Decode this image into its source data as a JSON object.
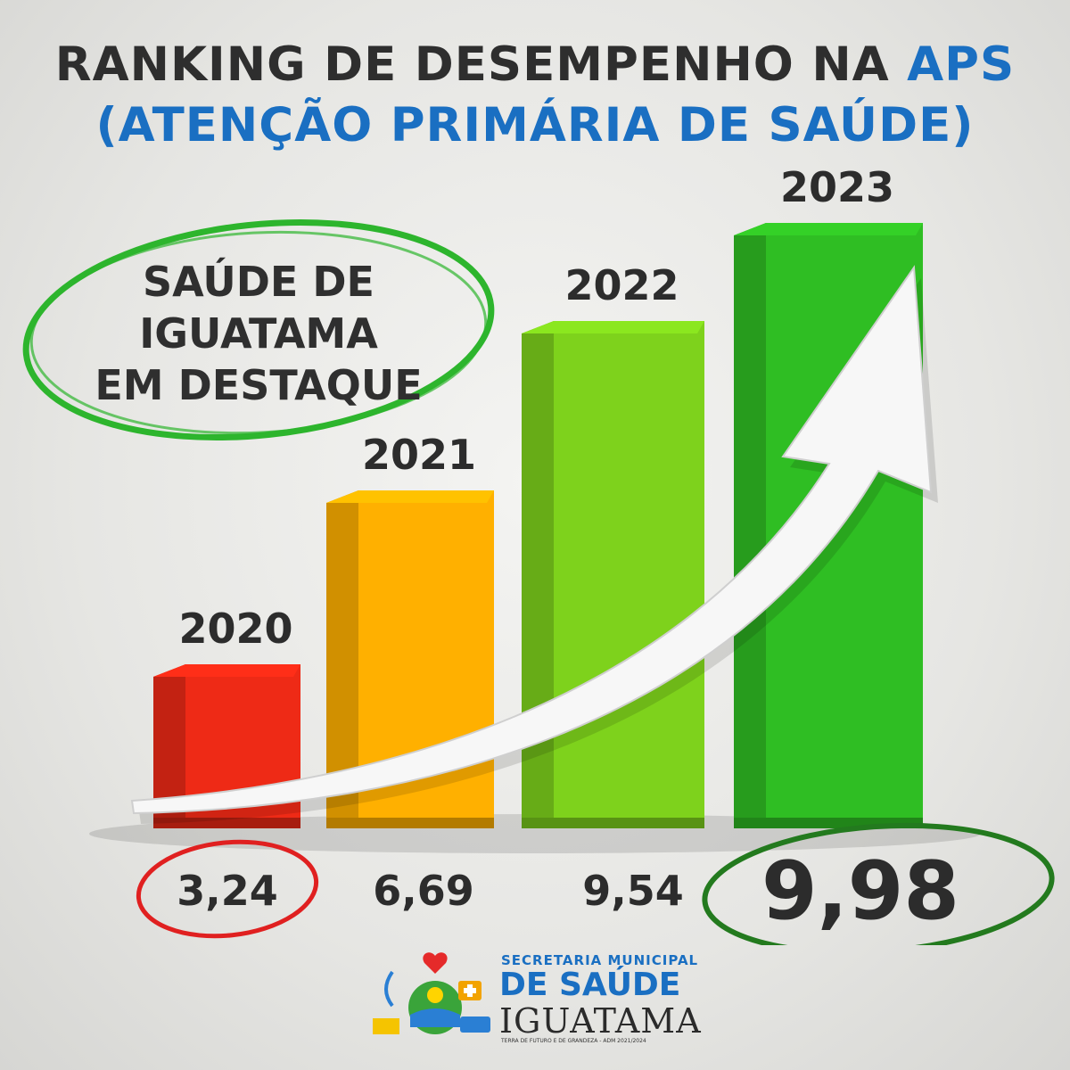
{
  "header": {
    "title_line1_prefix": "RANKING DE DESEMPENHO NA",
    "title_line1_accent": "APS",
    "title_line2": "(ATENÇÃO PRIMÁRIA DE SAÚDE)",
    "accent_color": "#1a6fc2"
  },
  "badge": {
    "lines": [
      "SAÚDE DE",
      "IGUATAMA",
      "EM DESTAQUE"
    ],
    "ring_color": "#2db52d"
  },
  "chart_data": {
    "type": "bar",
    "title": "RANKING DE DESEMPENHO NA APS (ATENÇÃO PRIMÁRIA DE SAÚDE)",
    "categories": [
      "2020",
      "2021",
      "2022",
      "2023"
    ],
    "values": [
      3.24,
      6.69,
      9.54,
      9.98
    ],
    "value_labels": [
      "3,24",
      "6,69",
      "9,54",
      "9,98"
    ],
    "bar_colors": [
      "#ee2a16",
      "#ffb000",
      "#7ed21c",
      "#2fbe23"
    ],
    "ylim": [
      0,
      10
    ],
    "grid": false,
    "legend": "none",
    "highlight_circles": [
      {
        "label": "3,24",
        "color": "#e02020"
      },
      {
        "label": "9,98",
        "color": "#237a1e"
      }
    ],
    "trend_arrow": "upward"
  },
  "logo": {
    "line1": "SECRETARIA MUNICIPAL",
    "line2": "DE SAÚDE",
    "line3": "IGUATAMA",
    "line4": "TERRA DE FUTURO E DE GRANDEZA - ADM 2021/2024",
    "icon": "health-secretariat-emblem-icon"
  }
}
